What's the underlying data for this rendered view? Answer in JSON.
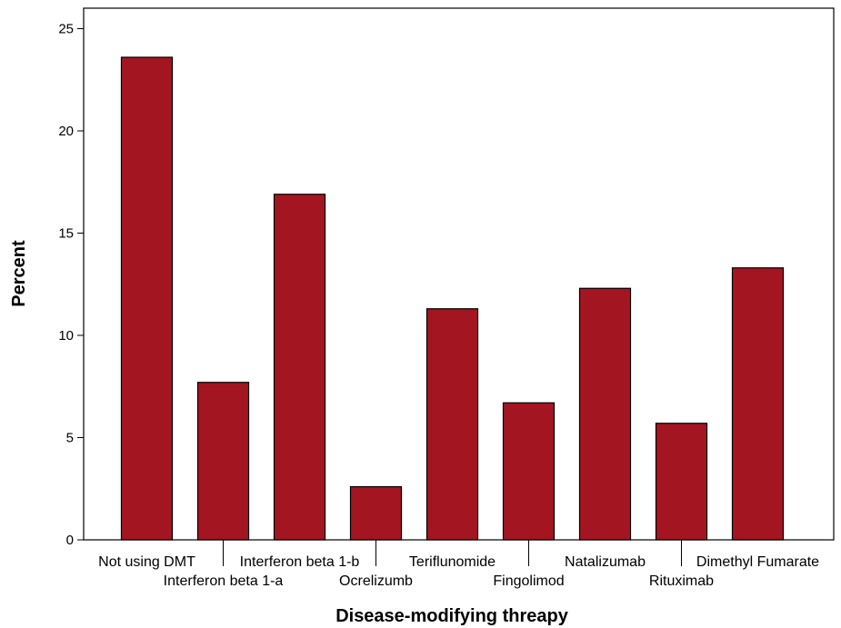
{
  "chart_data": {
    "type": "bar",
    "title": "",
    "xlabel": "Disease-modifying threapy",
    "ylabel": "Percent",
    "ylim": [
      0,
      26
    ],
    "yticks": [
      "0",
      "5",
      "10",
      "15",
      "20",
      "25"
    ],
    "grid": false,
    "legend": "none",
    "bar_color": "#a31621",
    "categories": [
      "Not using DMT",
      "Interferon beta 1-a",
      "Interferon beta 1-b",
      "Ocrelizumb",
      "Teriflunomide",
      "Fingolimod",
      "Natalizumab",
      "Rituximab",
      "Dimethyl Fumarate"
    ],
    "values": [
      23.6,
      7.7,
      16.9,
      2.6,
      11.3,
      6.7,
      12.3,
      5.7,
      13.3
    ]
  }
}
